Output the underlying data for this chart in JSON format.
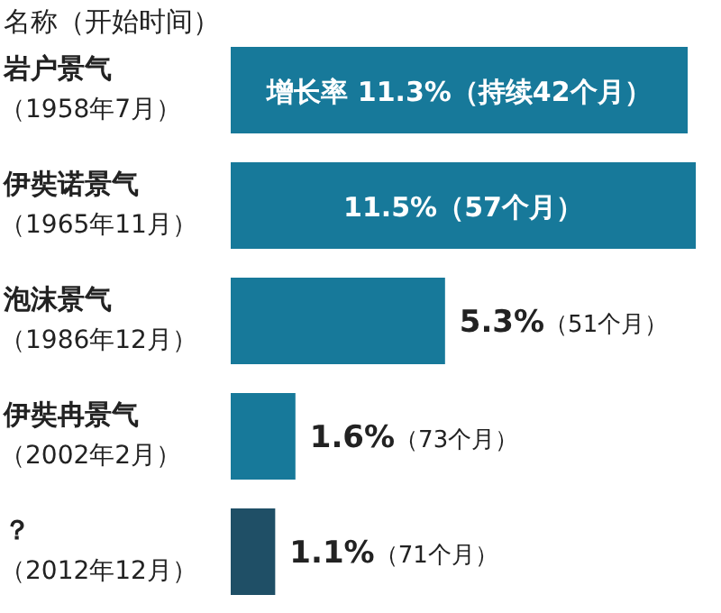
{
  "chart_data": {
    "type": "bar",
    "orientation": "horizontal",
    "ylabel": "名称（开始时间）",
    "categories": [
      "岩户景气（1958年7月）",
      "伊奘诺景气（1965年11月）",
      "泡沫景气（1986年12月）",
      "伊奘冉景气（2002年2月）",
      "？（2012年12月）"
    ],
    "values": [
      11.3,
      11.5,
      5.3,
      1.6,
      1.1
    ],
    "value_labels": [
      "增长率 11.3%（持续42个月）",
      "11.5%（57个月）",
      "**5.3%**（51个月）",
      "**1.6%**（73个月）",
      "**1.1%**（71个月）"
    ],
    "colors": [
      "#17799a",
      "#17799a",
      "#17799a",
      "#17799a",
      "#1f4f66"
    ]
  }
}
